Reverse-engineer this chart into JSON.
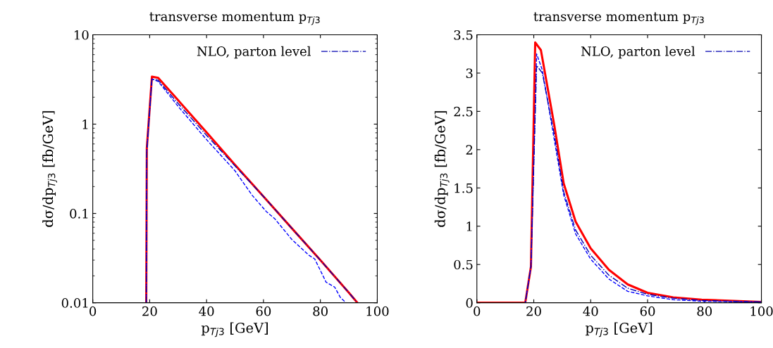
{
  "chart_data": [
    {
      "type": "line",
      "title": "transverse momentum p$_{Tj3}$",
      "xlabel": "p$_{Tj3}$ [GeV]",
      "ylabel": "dσ/dp$_{Tj3}$ [fb/GeV]",
      "log": "y",
      "xlim": [
        0,
        100
      ],
      "xticks": [
        0,
        20,
        40,
        60,
        80,
        100
      ],
      "ylim": [
        0.01,
        10
      ],
      "yticks": [
        0.01,
        0.1,
        1,
        10
      ],
      "grid": false,
      "legend": "top right",
      "series": [
        {
          "color": "#ff0000",
          "line_style": "solid",
          "x": [
            18.8,
            19.0,
            20.8,
            23,
            30,
            40,
            50,
            60,
            70,
            80,
            90,
            93
          ],
          "values": [
            0.01,
            0.54,
            3.4,
            3.3,
            1.85,
            0.81,
            0.35,
            0.155,
            0.068,
            0.03,
            0.013,
            0.01
          ]
        },
        {
          "color": "#0000ff",
          "line_style": "dashed",
          "x": [
            18.8,
            19.0,
            20.8,
            23,
            30,
            40,
            50,
            56,
            61,
            64,
            70,
            76,
            78,
            82,
            85,
            87,
            89
          ],
          "values": [
            0.01,
            0.5,
            3.2,
            3.0,
            1.58,
            0.67,
            0.3,
            0.16,
            0.105,
            0.087,
            0.051,
            0.034,
            0.031,
            0.017,
            0.015,
            0.0115,
            0.01
          ]
        },
        {
          "name": "NLO, parton level",
          "color": "#0000b0",
          "line_style": "dashdot",
          "x": [
            18.8,
            19.0,
            20.8,
            23,
            30,
            40,
            50,
            60,
            70,
            80,
            90,
            93
          ],
          "values": [
            0.01,
            0.52,
            3.2,
            3.1,
            1.7,
            0.75,
            0.34,
            0.155,
            0.068,
            0.03,
            0.013,
            0.01
          ]
        }
      ]
    },
    {
      "type": "line",
      "title": "transverse momentum p$_{Tj3}$",
      "xlabel": "p$_{Tj3}$ [GeV]",
      "ylabel": "dσ/dp$_{Tj3}$ [fb/GeV]",
      "xlim": [
        0,
        100
      ],
      "xticks": [
        0,
        20,
        40,
        60,
        80,
        100
      ],
      "ylim": [
        0,
        3.5
      ],
      "yticks": [
        0,
        0.5,
        1,
        1.5,
        2,
        2.5,
        3,
        3.5
      ],
      "grid": false,
      "legend": "top right",
      "series": [
        {
          "color": "#ff0000",
          "line_style": "solid",
          "x": [
            0,
            17,
            19,
            20.5,
            22.5,
            27.2,
            30.5,
            34.7,
            40,
            46.4,
            53,
            60,
            69,
            79,
            100
          ],
          "values": [
            0,
            0,
            0.47,
            3.4,
            3.3,
            2.32,
            1.56,
            1.06,
            0.71,
            0.43,
            0.24,
            0.13,
            0.07,
            0.04,
            0.01
          ]
        },
        {
          "color": "#0000ff",
          "line_style": "dashed",
          "x": [
            0,
            17,
            19,
            21,
            23,
            27.2,
            30.5,
            34.7,
            40,
            46.4,
            53,
            60,
            69,
            79,
            100
          ],
          "values": [
            0,
            0,
            0.47,
            3.25,
            3.04,
            2.13,
            1.41,
            0.9,
            0.57,
            0.31,
            0.15,
            0.09,
            0.04,
            0.02,
            0.01
          ]
        },
        {
          "name": "NLO, parton level",
          "color": "#0000b0",
          "line_style": "dashdot",
          "x": [
            0,
            17,
            19,
            21,
            23,
            27.2,
            30.5,
            34.7,
            40,
            46.4,
            53,
            60,
            69,
            79,
            100
          ],
          "values": [
            0,
            0,
            0.47,
            3.1,
            3.0,
            2.2,
            1.45,
            0.95,
            0.62,
            0.36,
            0.19,
            0.11,
            0.06,
            0.03,
            0.01
          ]
        }
      ]
    }
  ]
}
